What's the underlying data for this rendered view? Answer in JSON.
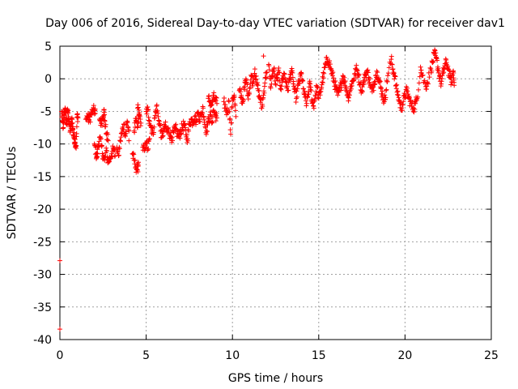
{
  "chart_data": {
    "type": "scatter",
    "title": "Day 006 of 2016, Sidereal Day-to-day VTEC variation (SDTVAR) for receiver dav1",
    "xlabel": "GPS time / hours",
    "ylabel": "SDTVAR / TECUs",
    "xlim": [
      0,
      25
    ],
    "ylim": [
      -40,
      5
    ],
    "grid": true,
    "marker": "+",
    "color": "#ff0000",
    "x_ticks": [
      0,
      5,
      10,
      15,
      20,
      25
    ],
    "x_tick_labels": [
      "0",
      "5",
      "10",
      "15",
      "20",
      "25"
    ],
    "y_ticks": [
      5,
      0,
      -5,
      -10,
      -15,
      -20,
      -25,
      -30,
      -35,
      -40
    ],
    "y_tick_labels": [
      "5",
      "0",
      "-5",
      "-10",
      "-15",
      "-20",
      "-25",
      "-30",
      "-35",
      "-40"
    ],
    "series": [
      {
        "name": "dav1",
        "points": [
          [
            0.0,
            -27.9
          ],
          [
            0.0,
            -38.4
          ],
          [
            0.1,
            -5.0
          ],
          [
            0.15,
            -6.5
          ],
          [
            0.2,
            -7.5
          ],
          [
            0.25,
            -5.5
          ],
          [
            0.3,
            -4.5
          ],
          [
            0.35,
            -6.0
          ],
          [
            0.4,
            -7.0
          ],
          [
            0.45,
            -4.8
          ],
          [
            0.5,
            -5.8
          ],
          [
            0.55,
            -6.8
          ],
          [
            0.6,
            -8.0
          ],
          [
            0.65,
            -7.2
          ],
          [
            0.7,
            -6.0
          ],
          [
            0.75,
            -7.8
          ],
          [
            0.8,
            -8.8
          ],
          [
            0.85,
            -9.2
          ],
          [
            0.9,
            -9.8
          ],
          [
            0.95,
            -10.3
          ],
          [
            1.0,
            -5.5
          ],
          [
            1.05,
            -6.0
          ],
          [
            1.5,
            -6.2
          ],
          [
            1.6,
            -5.8
          ],
          [
            1.7,
            -6.4
          ],
          [
            1.8,
            -5.5
          ],
          [
            1.9,
            -5.0
          ],
          [
            2.0,
            -4.8
          ],
          [
            2.05,
            -5.3
          ],
          [
            2.0,
            -10.0
          ],
          [
            2.1,
            -11.5
          ],
          [
            2.15,
            -12.0
          ],
          [
            2.2,
            -10.5
          ],
          [
            2.3,
            -9.0
          ],
          [
            2.4,
            -10.2
          ],
          [
            2.5,
            -11.8
          ],
          [
            2.6,
            -12.5
          ],
          [
            2.7,
            -11.0
          ],
          [
            2.8,
            -12.8
          ],
          [
            2.9,
            -12.2
          ],
          [
            3.0,
            -11.5
          ],
          [
            3.1,
            -10.8
          ],
          [
            3.2,
            -11.8
          ],
          [
            2.3,
            -6.2
          ],
          [
            2.4,
            -6.8
          ],
          [
            2.5,
            -5.8
          ],
          [
            2.55,
            -4.8
          ],
          [
            2.6,
            -6.5
          ],
          [
            2.7,
            -8.5
          ],
          [
            2.8,
            -9.5
          ],
          [
            3.3,
            -10.5
          ],
          [
            3.4,
            -11.8
          ],
          [
            3.5,
            -9.5
          ],
          [
            3.6,
            -8.2
          ],
          [
            3.7,
            -7.0
          ],
          [
            3.8,
            -8.8
          ],
          [
            3.9,
            -6.5
          ],
          [
            4.0,
            -8.0
          ],
          [
            4.0,
            -9.5
          ],
          [
            4.2,
            -11.5
          ],
          [
            4.3,
            -12.5
          ],
          [
            4.4,
            -13.5
          ],
          [
            4.5,
            -14.0
          ],
          [
            4.55,
            -12.8
          ],
          [
            4.3,
            -8.0
          ],
          [
            4.4,
            -6.5
          ],
          [
            4.5,
            -7.5
          ],
          [
            4.6,
            -5.5
          ],
          [
            4.7,
            -6.8
          ],
          [
            4.5,
            -4.5
          ],
          [
            4.6,
            -5.2
          ],
          [
            4.8,
            -10.5
          ],
          [
            4.9,
            -11.0
          ],
          [
            5.0,
            -9.8
          ],
          [
            5.1,
            -10.8
          ],
          [
            5.2,
            -9.2
          ],
          [
            5.0,
            -5.0
          ],
          [
            5.1,
            -4.8
          ],
          [
            5.2,
            -6.5
          ],
          [
            5.3,
            -7.5
          ],
          [
            5.4,
            -8.5
          ],
          [
            5.5,
            -6.0
          ],
          [
            5.6,
            -4.2
          ],
          [
            5.7,
            -5.8
          ],
          [
            5.8,
            -7.2
          ],
          [
            5.9,
            -9.0
          ],
          [
            6.0,
            -8.0
          ],
          [
            6.1,
            -7.2
          ],
          [
            6.2,
            -8.2
          ],
          [
            6.3,
            -7.8
          ],
          [
            6.4,
            -8.8
          ],
          [
            6.5,
            -9.0
          ],
          [
            6.6,
            -8.2
          ],
          [
            6.7,
            -7.6
          ],
          [
            6.8,
            -8.4
          ],
          [
            6.9,
            -8.9
          ],
          [
            7.0,
            -8.0
          ],
          [
            7.1,
            -7.5
          ],
          [
            7.2,
            -7.0
          ],
          [
            7.3,
            -8.6
          ],
          [
            7.4,
            -9.2
          ],
          [
            7.5,
            -7.0
          ],
          [
            7.6,
            -6.2
          ],
          [
            7.7,
            -6.6
          ],
          [
            7.8,
            -5.8
          ],
          [
            7.9,
            -6.5
          ],
          [
            8.0,
            -5.2
          ],
          [
            8.1,
            -6.2
          ],
          [
            8.2,
            -5.5
          ],
          [
            8.3,
            -4.5
          ],
          [
            8.4,
            -7.0
          ],
          [
            8.5,
            -8.0
          ],
          [
            8.6,
            -6.5
          ],
          [
            8.7,
            -5.5
          ],
          [
            8.8,
            -6.8
          ],
          [
            8.9,
            -4.8
          ],
          [
            9.0,
            -5.5
          ],
          [
            9.1,
            -6.0
          ],
          [
            8.6,
            -3.0
          ],
          [
            8.7,
            -3.5
          ],
          [
            8.8,
            -4.0
          ],
          [
            8.9,
            -2.8
          ],
          [
            9.0,
            -3.2
          ],
          [
            9.1,
            -3.8
          ],
          [
            9.5,
            -3.5
          ],
          [
            9.6,
            -4.5
          ],
          [
            9.7,
            -5.2
          ],
          [
            9.8,
            -3.5
          ],
          [
            9.9,
            -8.5
          ],
          [
            10.0,
            -3.0
          ],
          [
            10.1,
            -2.5
          ],
          [
            10.2,
            -5.8
          ],
          [
            10.4,
            -1.8
          ],
          [
            10.5,
            -2.8
          ],
          [
            10.6,
            -3.5
          ],
          [
            10.7,
            -1.2
          ],
          [
            10.8,
            -0.2
          ],
          [
            10.9,
            -2.5
          ],
          [
            11.0,
            -1.5
          ],
          [
            11.1,
            0.5
          ],
          [
            11.2,
            -0.5
          ],
          [
            11.3,
            1.5
          ],
          [
            11.4,
            -0.8
          ],
          [
            11.5,
            -1.8
          ],
          [
            11.6,
            -3.0
          ],
          [
            11.7,
            -4.5
          ],
          [
            11.8,
            -2.5
          ],
          [
            11.9,
            0.2
          ],
          [
            12.0,
            1.0
          ],
          [
            11.8,
            3.5
          ],
          [
            12.1,
            2.2
          ],
          [
            12.2,
            -1.2
          ],
          [
            12.3,
            0.5
          ],
          [
            12.4,
            1.5
          ],
          [
            12.5,
            -0.8
          ],
          [
            12.6,
            0.2
          ],
          [
            12.7,
            1.0
          ],
          [
            12.8,
            -1.5
          ],
          [
            12.9,
            0.0
          ],
          [
            13.0,
            0.8
          ],
          [
            13.1,
            -0.5
          ],
          [
            13.2,
            -1.8
          ],
          [
            13.3,
            -0.2
          ],
          [
            13.4,
            1.2
          ],
          [
            13.5,
            0.2
          ],
          [
            13.6,
            -2.0
          ],
          [
            13.7,
            -3.0
          ],
          [
            13.8,
            -1.0
          ],
          [
            13.9,
            -0.2
          ],
          [
            14.0,
            0.8
          ],
          [
            14.1,
            -1.5
          ],
          [
            14.2,
            -2.8
          ],
          [
            14.3,
            -3.8
          ],
          [
            14.4,
            -2.0
          ],
          [
            14.5,
            -0.8
          ],
          [
            14.6,
            -3.2
          ],
          [
            14.7,
            -4.2
          ],
          [
            14.8,
            -2.5
          ],
          [
            14.9,
            -1.2
          ],
          [
            15.0,
            -3.0
          ],
          [
            15.1,
            -2.0
          ],
          [
            15.2,
            -0.5
          ],
          [
            15.3,
            0.8
          ],
          [
            15.4,
            2.2
          ],
          [
            15.5,
            3.0
          ],
          [
            15.6,
            2.5
          ],
          [
            15.7,
            1.5
          ],
          [
            15.8,
            0.5
          ],
          [
            15.9,
            -0.5
          ],
          [
            16.0,
            -1.5
          ],
          [
            16.1,
            -2.5
          ],
          [
            16.2,
            -1.8
          ],
          [
            16.3,
            -0.8
          ],
          [
            16.4,
            0.5
          ],
          [
            16.5,
            -0.5
          ],
          [
            16.6,
            -1.5
          ],
          [
            16.7,
            -2.8
          ],
          [
            16.8,
            -2.0
          ],
          [
            16.9,
            -0.8
          ],
          [
            17.0,
            -0.2
          ],
          [
            17.1,
            0.8
          ],
          [
            17.2,
            1.5
          ],
          [
            17.3,
            0.5
          ],
          [
            17.4,
            -0.8
          ],
          [
            17.5,
            -1.8
          ],
          [
            17.6,
            -0.5
          ],
          [
            17.7,
            0.5
          ],
          [
            17.8,
            1.2
          ],
          [
            17.9,
            0.2
          ],
          [
            18.0,
            -1.0
          ],
          [
            18.1,
            -2.0
          ],
          [
            18.2,
            -0.8
          ],
          [
            18.3,
            0.5
          ],
          [
            18.4,
            1.0
          ],
          [
            18.5,
            -0.2
          ],
          [
            18.6,
            -1.5
          ],
          [
            18.7,
            -2.5
          ],
          [
            18.8,
            -3.5
          ],
          [
            18.9,
            -1.8
          ],
          [
            19.0,
            0.5
          ],
          [
            19.2,
            3.0
          ],
          [
            19.3,
            1.5
          ],
          [
            19.4,
            0.5
          ],
          [
            19.5,
            -1.5
          ],
          [
            19.6,
            -2.5
          ],
          [
            19.7,
            -3.8
          ],
          [
            19.8,
            -4.5
          ],
          [
            19.9,
            -3.5
          ],
          [
            20.0,
            -2.5
          ],
          [
            20.1,
            -1.8
          ],
          [
            20.2,
            -2.8
          ],
          [
            20.3,
            -3.5
          ],
          [
            20.4,
            -4.2
          ],
          [
            20.5,
            -4.5
          ],
          [
            20.6,
            -3.8
          ],
          [
            20.7,
            -3.0
          ],
          [
            20.9,
            1.8
          ],
          [
            21.0,
            0.5
          ],
          [
            21.2,
            -1.2
          ],
          [
            21.3,
            -0.5
          ],
          [
            21.5,
            1.5
          ],
          [
            21.6,
            2.5
          ],
          [
            21.7,
            3.8
          ],
          [
            21.8,
            3.2
          ],
          [
            21.9,
            1.8
          ],
          [
            22.0,
            0.5
          ],
          [
            22.1,
            -0.8
          ],
          [
            22.2,
            0.8
          ],
          [
            22.3,
            2.0
          ],
          [
            22.4,
            2.5
          ],
          [
            22.5,
            1.5
          ],
          [
            22.6,
            0.2
          ],
          [
            22.7,
            -0.5
          ],
          [
            22.8,
            1.2
          ],
          [
            22.85,
            -1.0
          ]
        ]
      }
    ]
  }
}
